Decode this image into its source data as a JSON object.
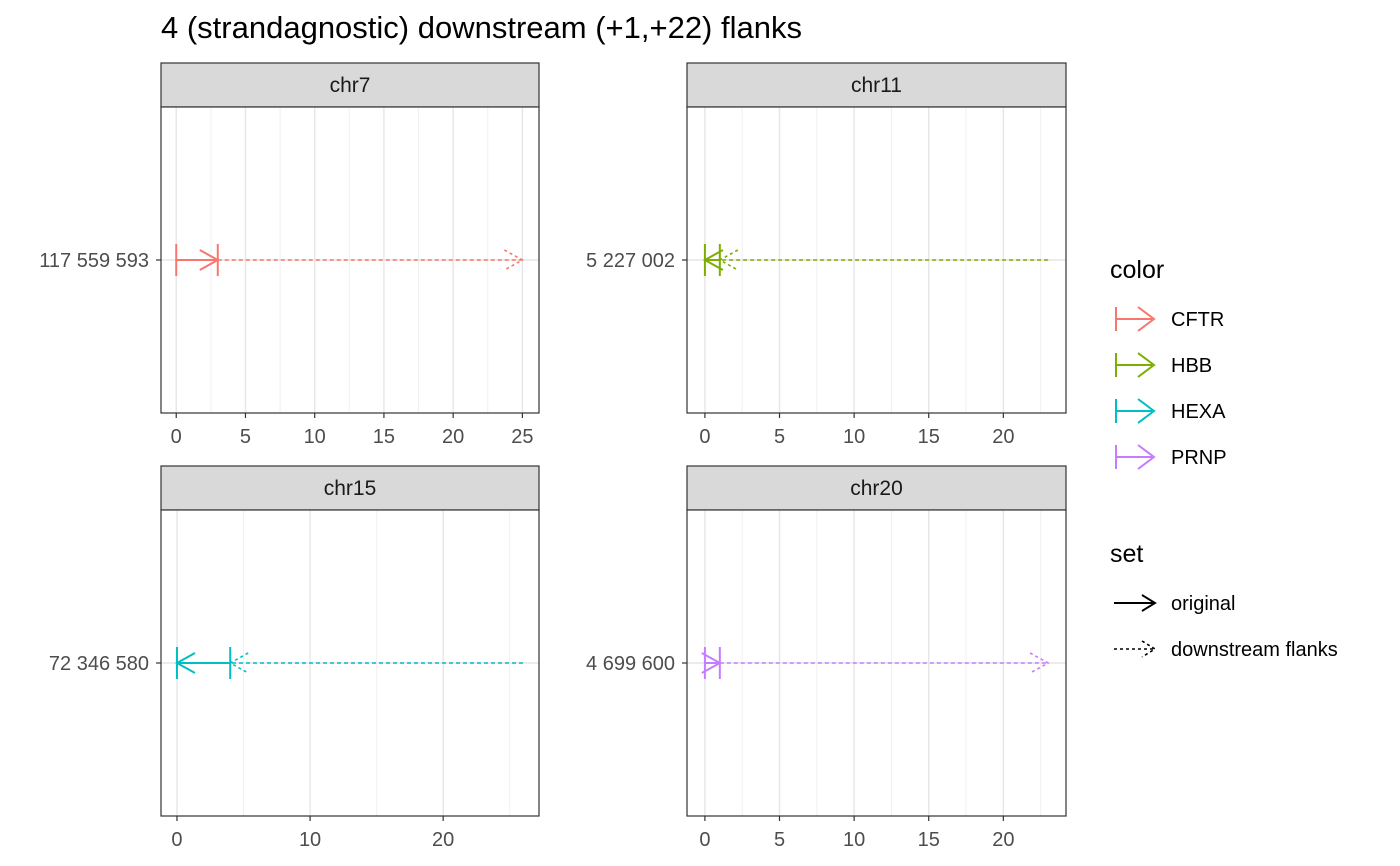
{
  "title": "4 (strandagnostic) downstream (+1,+22) flanks",
  "chart_data": {
    "type": "faceted-segment",
    "title": "4 (strandagnostic) downstream (+1,+22) flanks",
    "panels": [
      {
        "strip": "chr7",
        "gene": "CFTR",
        "y_tick": "117 559 593",
        "xlim": [
          -1.1,
          26.2
        ],
        "x_ticks": [
          0,
          5,
          10,
          15,
          20,
          25
        ],
        "segments": [
          {
            "set": "original",
            "x_start": 0,
            "x_end": 3,
            "direction": "forward"
          },
          {
            "set": "downstream flanks",
            "x_start": 3,
            "x_end": 25,
            "direction": "forward"
          }
        ]
      },
      {
        "strip": "chr11",
        "gene": "HBB",
        "y_tick": "5 227 002",
        "xlim": [
          -1.2,
          24.2
        ],
        "x_ticks": [
          0,
          5,
          10,
          15,
          20
        ],
        "segments": [
          {
            "set": "original",
            "x_start": 1,
            "x_end": 0,
            "direction": "reverse"
          },
          {
            "set": "downstream flanks",
            "x_start": 23,
            "x_end": 1,
            "direction": "reverse"
          }
        ]
      },
      {
        "strip": "chr15",
        "gene": "HEXA",
        "y_tick": "72 346 580",
        "xlim": [
          -1.2,
          27.2
        ],
        "x_ticks": [
          0,
          10,
          20
        ],
        "segments": [
          {
            "set": "original",
            "x_start": 4,
            "x_end": 0,
            "direction": "reverse"
          },
          {
            "set": "downstream flanks",
            "x_start": 26,
            "x_end": 4,
            "direction": "reverse"
          }
        ]
      },
      {
        "strip": "chr20",
        "gene": "PRNP",
        "y_tick": "4 699 600",
        "xlim": [
          -1.2,
          24.2
        ],
        "x_ticks": [
          0,
          5,
          10,
          15,
          20
        ],
        "segments": [
          {
            "set": "original",
            "x_start": 0,
            "x_end": 1,
            "direction": "forward"
          },
          {
            "set": "downstream flanks",
            "x_start": 1,
            "x_end": 23,
            "direction": "forward"
          }
        ]
      }
    ],
    "legend": {
      "color_title": "color",
      "color_items": [
        {
          "label": "CFTR",
          "color": "#F8766D"
        },
        {
          "label": "HBB",
          "color": "#7CAE00"
        },
        {
          "label": "HEXA",
          "color": "#00BFC4"
        },
        {
          "label": "PRNP",
          "color": "#C77CFF"
        }
      ],
      "set_title": "set",
      "set_items": [
        {
          "label": "original",
          "linetype": "solid"
        },
        {
          "label": "downstream flanks",
          "linetype": "dotted"
        }
      ],
      "position": "right"
    },
    "grid": true
  }
}
